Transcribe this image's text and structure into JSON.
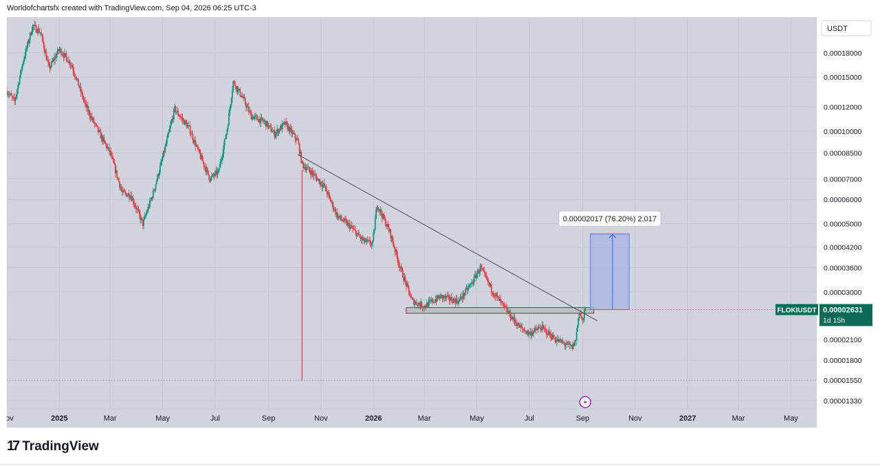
{
  "header": {
    "attribution": "Worldofchartsfx created with TradingView.com, Sep 04, 2026 06:25 UTC-3"
  },
  "footer": {
    "brand": "TradingView"
  },
  "colors": {
    "background": "#d1d4dc",
    "up": "#089981",
    "down": "#f23645",
    "trendline": "#4a4a55",
    "zone_fill": "#b8c4c4",
    "zone_border": "#9c2740",
    "measure_fill": "#a7b4e6",
    "measure_line": "#2962ff",
    "price_tag": "#0b6b57"
  },
  "chart_data": {
    "type": "candlestick",
    "symbol": "FLOKIUSDT",
    "currency": "USDT",
    "scale": "log",
    "ylim": [
      1.25e-05,
      0.000235
    ],
    "xlim": [
      "2024-11-01",
      "2027-05-31"
    ],
    "x_ticks": [
      {
        "date": "2024-11-01",
        "label": "Nov",
        "bold": false
      },
      {
        "date": "2025-01-01",
        "label": "2025",
        "bold": true
      },
      {
        "date": "2025-03-01",
        "label": "Mar",
        "bold": false
      },
      {
        "date": "2025-05-01",
        "label": "May",
        "bold": false
      },
      {
        "date": "2025-07-01",
        "label": "Jul",
        "bold": false
      },
      {
        "date": "2025-09-01",
        "label": "Sep",
        "bold": false
      },
      {
        "date": "2025-11-01",
        "label": "Nov",
        "bold": false
      },
      {
        "date": "2026-01-01",
        "label": "2026",
        "bold": true
      },
      {
        "date": "2026-03-01",
        "label": "Mar",
        "bold": false
      },
      {
        "date": "2026-05-01",
        "label": "May",
        "bold": false
      },
      {
        "date": "2026-07-01",
        "label": "Jul",
        "bold": false
      },
      {
        "date": "2026-09-01",
        "label": "Sep",
        "bold": false
      },
      {
        "date": "2026-11-01",
        "label": "Nov",
        "bold": false
      },
      {
        "date": "2027-01-01",
        "label": "2027",
        "bold": true
      },
      {
        "date": "2027-03-01",
        "label": "Mar",
        "bold": false
      },
      {
        "date": "2027-05-01",
        "label": "May",
        "bold": false
      }
    ],
    "y_ticks": [
      {
        "value": 0.00018,
        "label": "0.00018000"
      },
      {
        "value": 0.00015,
        "label": "0.00015000"
      },
      {
        "value": 0.00012,
        "label": "0.00012000"
      },
      {
        "value": 0.0001,
        "label": "0.00010000"
      },
      {
        "value": 8.5e-05,
        "label": "0.00008500"
      },
      {
        "value": 7e-05,
        "label": "0.00007000"
      },
      {
        "value": 6e-05,
        "label": "0.00006000"
      },
      {
        "value": 5e-05,
        "label": "0.00005000"
      },
      {
        "value": 4.2e-05,
        "label": "0.00004200"
      },
      {
        "value": 3.6e-05,
        "label": "0.00003600"
      },
      {
        "value": 3e-05,
        "label": "0.00003000"
      },
      {
        "value": 2.1e-05,
        "label": "0.00002100"
      },
      {
        "value": 1.8e-05,
        "label": "0.00001800"
      },
      {
        "value": 1.55e-05,
        "label": "0.00001550"
      },
      {
        "value": 1.33e-05,
        "label": "0.00001330"
      }
    ],
    "price_path": [
      [
        "2024-11-01",
        0.000135
      ],
      [
        "2024-11-10",
        0.000125
      ],
      [
        "2024-11-20",
        0.00017
      ],
      [
        "2024-12-01",
        0.00022
      ],
      [
        "2024-12-10",
        0.00021
      ],
      [
        "2024-12-20",
        0.00016
      ],
      [
        "2025-01-01",
        0.000185
      ],
      [
        "2025-01-15",
        0.000165
      ],
      [
        "2025-02-01",
        0.00012
      ],
      [
        "2025-02-15",
        0.0001
      ],
      [
        "2025-03-01",
        8.5e-05
      ],
      [
        "2025-03-15",
        6.3e-05
      ],
      [
        "2025-03-25",
        6.2e-05
      ],
      [
        "2025-04-08",
        5e-05
      ],
      [
        "2025-04-20",
        6.3e-05
      ],
      [
        "2025-05-01",
        8.2e-05
      ],
      [
        "2025-05-15",
        0.000118
      ],
      [
        "2025-06-01",
        0.000102
      ],
      [
        "2025-06-10",
        8.8e-05
      ],
      [
        "2025-06-25",
        7e-05
      ],
      [
        "2025-07-05",
        7.4e-05
      ],
      [
        "2025-07-15",
        0.000102
      ],
      [
        "2025-07-22",
        0.000145
      ],
      [
        "2025-08-01",
        0.00013
      ],
      [
        "2025-08-12",
        0.000112
      ],
      [
        "2025-08-28",
        0.000107
      ],
      [
        "2025-09-08",
        9.8e-05
      ],
      [
        "2025-09-20",
        0.000106
      ],
      [
        "2025-10-05",
        9.3e-05
      ],
      [
        "2025-10-10",
        7.8e-05
      ],
      [
        "2025-10-20",
        7.4e-05
      ],
      [
        "2025-11-05",
        6.6e-05
      ],
      [
        "2025-11-20",
        5.3e-05
      ],
      [
        "2025-12-05",
        4.9e-05
      ],
      [
        "2025-12-20",
        4.4e-05
      ],
      [
        "2025-12-31",
        4.3e-05
      ],
      [
        "2026-01-05",
        5.8e-05
      ],
      [
        "2026-01-20",
        4.7e-05
      ],
      [
        "2026-02-01",
        3.6e-05
      ],
      [
        "2026-02-15",
        2.8e-05
      ],
      [
        "2026-03-01",
        2.7e-05
      ],
      [
        "2026-03-20",
        2.9e-05
      ],
      [
        "2026-04-10",
        2.8e-05
      ],
      [
        "2026-04-25",
        3.2e-05
      ],
      [
        "2026-05-05",
        3.6e-05
      ],
      [
        "2026-05-20",
        3e-05
      ],
      [
        "2026-06-05",
        2.6e-05
      ],
      [
        "2026-06-20",
        2.3e-05
      ],
      [
        "2026-07-01",
        2.2e-05
      ],
      [
        "2026-07-15",
        2.3e-05
      ],
      [
        "2026-08-01",
        2.1e-05
      ],
      [
        "2026-08-20",
        1.98e-05
      ],
      [
        "2026-08-24",
        2.1e-05
      ],
      [
        "2026-08-28",
        2.6e-05
      ],
      [
        "2026-09-01",
        2.4e-05
      ],
      [
        "2026-09-04",
        2.631e-05
      ]
    ],
    "trendline": [
      [
        "2025-10-05",
        8.4e-05
      ],
      [
        "2026-09-18",
        2.42e-05
      ]
    ],
    "support_zone": {
      "x0": "2026-02-08",
      "x1": "2026-09-14",
      "y_top": 2.67e-05,
      "y_bottom": 2.56e-05
    },
    "spike_line": {
      "date": "2025-10-10",
      "low": 1.55e-05,
      "high": 7.5e-05
    },
    "dotted_level": 1.55e-05,
    "measure": {
      "x0": "2026-09-10",
      "x1": "2026-10-25",
      "y_from": 2.63e-05,
      "y_to": 4.64e-05,
      "label": "0.00002017 (76.20%) 2,017"
    },
    "last_price": {
      "label": "0.00002631",
      "value": 2.631e-05,
      "symbol": "FLOKIUSDT",
      "countdown": "1d 15h"
    },
    "event_marker": {
      "date": "2026-09-04"
    }
  }
}
